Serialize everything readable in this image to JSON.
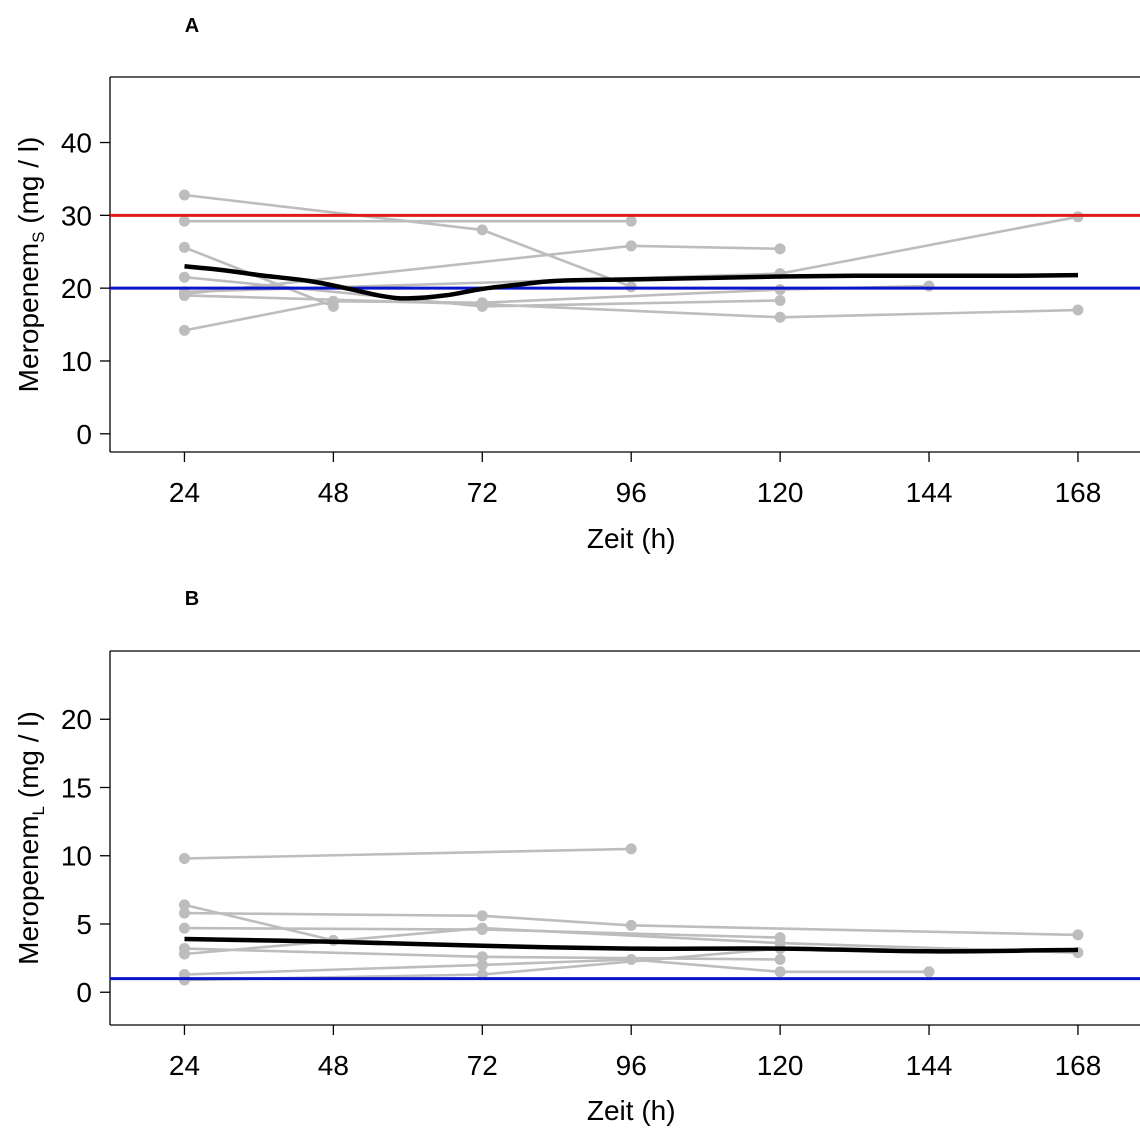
{
  "chart_data": [
    {
      "type": "line",
      "panel": "A",
      "xlabel": "Zeit (h)",
      "ylabel_main": "Meropenem",
      "ylabel_sub": "S",
      "ylabel_unit": " (mg / l)",
      "x_ticks": [
        24,
        48,
        72,
        96,
        120,
        144,
        168
      ],
      "y_ticks": [
        0,
        10,
        20,
        30,
        40
      ],
      "xlim": [
        12,
        178
      ],
      "ylim": [
        -2.5,
        49
      ],
      "grid": false,
      "colors": {
        "individual": "#bdbdbd",
        "mean": "#000000",
        "upper_ref": "#e01b1b",
        "lower_ref": "#0a14c8"
      },
      "reference_lines": [
        {
          "y": 30,
          "color": "#e01b1b"
        },
        {
          "y": 20,
          "color": "#0a14c8"
        }
      ],
      "series": [
        {
          "role": "individual",
          "points": [
            [
              24,
              32.8
            ],
            [
              72,
              28.0
            ],
            [
              96,
              20.2
            ]
          ]
        },
        {
          "role": "individual",
          "points": [
            [
              24,
              29.2
            ],
            [
              96,
              29.2
            ]
          ]
        },
        {
          "role": "individual",
          "points": [
            [
              24,
              25.6
            ],
            [
              48,
              17.5
            ]
          ]
        },
        {
          "role": "individual",
          "points": [
            [
              24,
              21.5
            ],
            [
              72,
              17.5
            ],
            [
              120,
              18.3
            ]
          ]
        },
        {
          "role": "individual",
          "points": [
            [
              24,
              19.2
            ],
            [
              96,
              25.8
            ],
            [
              120,
              25.4
            ]
          ]
        },
        {
          "role": "individual",
          "points": [
            [
              24,
              19.5
            ],
            [
              120,
              22.0
            ],
            [
              168,
              29.8
            ]
          ]
        },
        {
          "role": "individual",
          "points": [
            [
              24,
              19.0
            ],
            [
              72,
              17.8
            ],
            [
              120,
              16.0
            ],
            [
              168,
              17.0
            ]
          ]
        },
        {
          "role": "individual",
          "points": [
            [
              24,
              14.2
            ],
            [
              48,
              18.2
            ],
            [
              72,
              18.0
            ],
            [
              120,
              19.8
            ],
            [
              144,
              20.3
            ]
          ]
        },
        {
          "role": "mean",
          "points": [
            [
              24,
              23.0
            ],
            [
              30,
              22.5
            ],
            [
              36,
              21.8
            ],
            [
              44,
              21.0
            ],
            [
              50,
              20.0
            ],
            [
              56,
              18.9
            ],
            [
              60,
              18.6
            ],
            [
              66,
              19.0
            ],
            [
              72,
              19.9
            ],
            [
              78,
              20.5
            ],
            [
              84,
              21.0
            ],
            [
              96,
              21.2
            ],
            [
              108,
              21.4
            ],
            [
              120,
              21.6
            ],
            [
              132,
              21.7
            ],
            [
              144,
              21.7
            ],
            [
              156,
              21.7
            ],
            [
              168,
              21.8
            ]
          ]
        }
      ]
    },
    {
      "type": "line",
      "panel": "B",
      "xlabel": "Zeit (h)",
      "ylabel_main": "Meropenem",
      "ylabel_sub": "L",
      "ylabel_unit": " (mg / l)",
      "x_ticks": [
        24,
        48,
        72,
        96,
        120,
        144,
        168
      ],
      "y_ticks": [
        0,
        5,
        10,
        15,
        20
      ],
      "xlim": [
        12,
        178
      ],
      "ylim": [
        -2.4,
        25
      ],
      "grid": false,
      "colors": {
        "individual": "#bdbdbd",
        "mean": "#000000",
        "lower_ref": "#0a14c8"
      },
      "reference_lines": [
        {
          "y": 1,
          "color": "#0a14c8"
        }
      ],
      "series": [
        {
          "role": "individual",
          "points": [
            [
              24,
              9.8
            ],
            [
              96,
              10.5
            ]
          ]
        },
        {
          "role": "individual",
          "points": [
            [
              24,
              6.4
            ],
            [
              48,
              3.8
            ]
          ]
        },
        {
          "role": "individual",
          "points": [
            [
              24,
              5.8
            ],
            [
              72,
              5.6
            ],
            [
              96,
              4.9
            ],
            [
              168,
              4.2
            ]
          ]
        },
        {
          "role": "individual",
          "points": [
            [
              24,
              4.7
            ],
            [
              72,
              4.6
            ],
            [
              120,
              4.0
            ]
          ]
        },
        {
          "role": "individual",
          "points": [
            [
              24,
              3.2
            ],
            [
              72,
              2.6
            ],
            [
              120,
              2.4
            ]
          ]
        },
        {
          "role": "individual",
          "points": [
            [
              24,
              2.8
            ],
            [
              72,
              4.7
            ],
            [
              120,
              3.6
            ],
            [
              168,
              2.9
            ]
          ]
        },
        {
          "role": "individual",
          "points": [
            [
              24,
              1.3
            ],
            [
              72,
              2.0
            ],
            [
              96,
              2.4
            ],
            [
              120,
              1.5
            ],
            [
              144,
              1.5
            ]
          ]
        },
        {
          "role": "individual",
          "points": [
            [
              24,
              0.9
            ],
            [
              72,
              1.3
            ],
            [
              120,
              3.2
            ]
          ]
        },
        {
          "role": "mean",
          "points": [
            [
              24,
              3.9
            ],
            [
              48,
              3.7
            ],
            [
              72,
              3.4
            ],
            [
              96,
              3.2
            ],
            [
              120,
              3.2
            ],
            [
              144,
              3.0
            ],
            [
              168,
              3.1
            ]
          ]
        }
      ]
    }
  ]
}
